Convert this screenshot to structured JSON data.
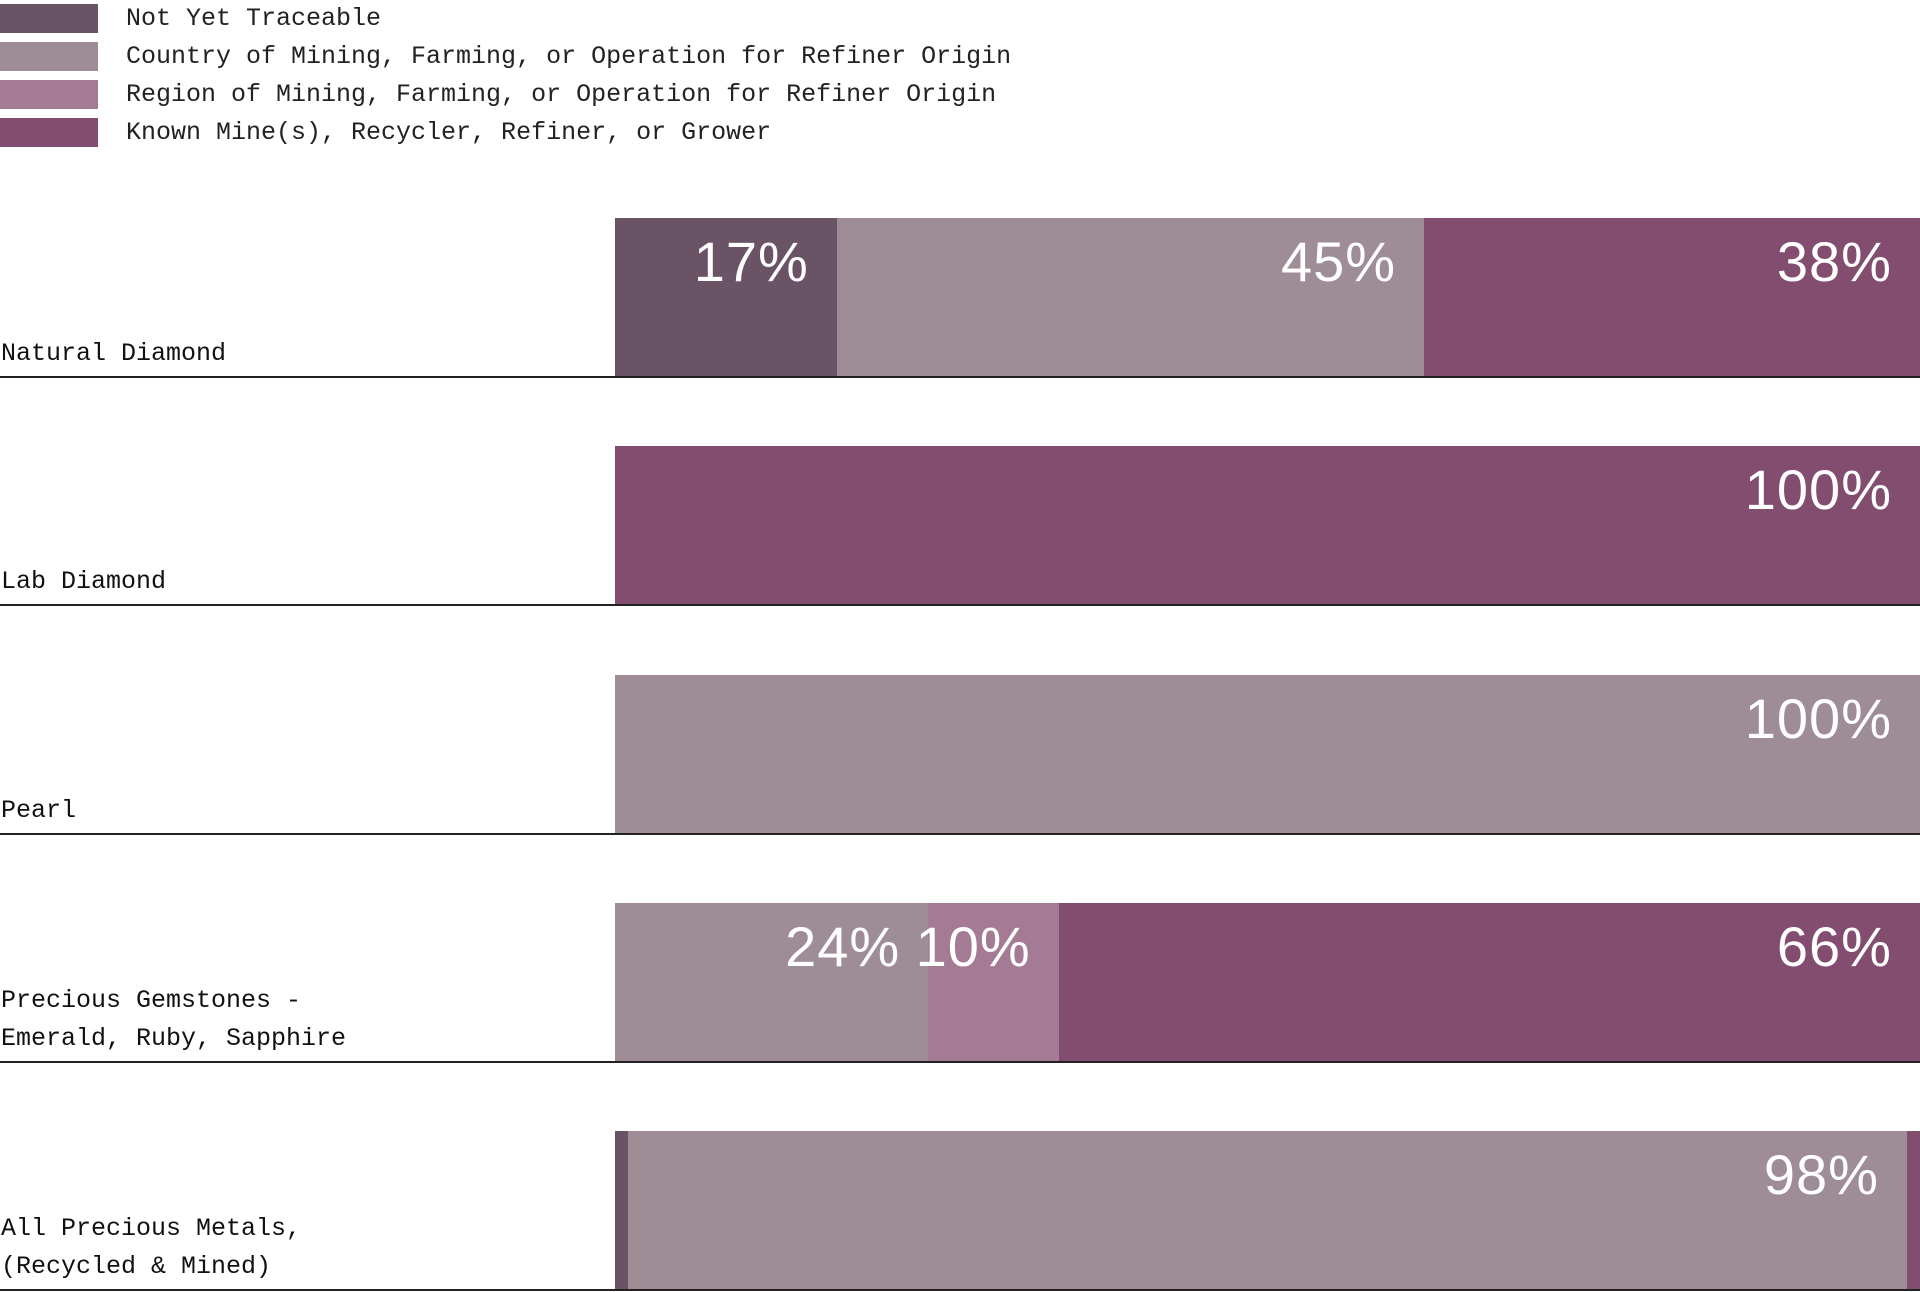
{
  "chart_data": {
    "type": "bar",
    "orientation": "horizontal",
    "stacked": true,
    "categories": [
      "Natural Diamond",
      "Lab Diamond",
      "Pearl",
      "Precious Gemstones -\nEmerald, Ruby, Sapphire",
      "All Precious Metals,\n(Recycled & Mined)"
    ],
    "xlim": [
      0,
      100
    ],
    "series": [
      {
        "name": "Not Yet Traceable",
        "color": "#6b5366",
        "values": [
          17,
          0,
          0,
          0,
          1
        ],
        "value_labels": [
          "17%",
          null,
          null,
          null,
          null
        ]
      },
      {
        "name": "Country of Mining, Farming, or Operation for Refiner Origin",
        "color": "#9e8c97",
        "values": [
          45,
          0,
          100,
          24,
          98
        ],
        "value_labels": [
          "45%",
          null,
          "100%",
          "24%",
          "98%"
        ]
      },
      {
        "name": "Region of Mining, Farming, or Operation for Refiner Origin",
        "color": "#a57a95",
        "values": [
          0,
          0,
          0,
          10,
          0
        ],
        "value_labels": [
          null,
          null,
          null,
          "10%",
          null
        ]
      },
      {
        "name": "Known Mine(s), Recycler, Refiner, or Grower",
        "color": "#834d6f",
        "values": [
          38,
          100,
          0,
          66,
          1
        ],
        "value_labels": [
          "38%",
          "100%",
          null,
          "66%",
          null
        ]
      }
    ]
  }
}
